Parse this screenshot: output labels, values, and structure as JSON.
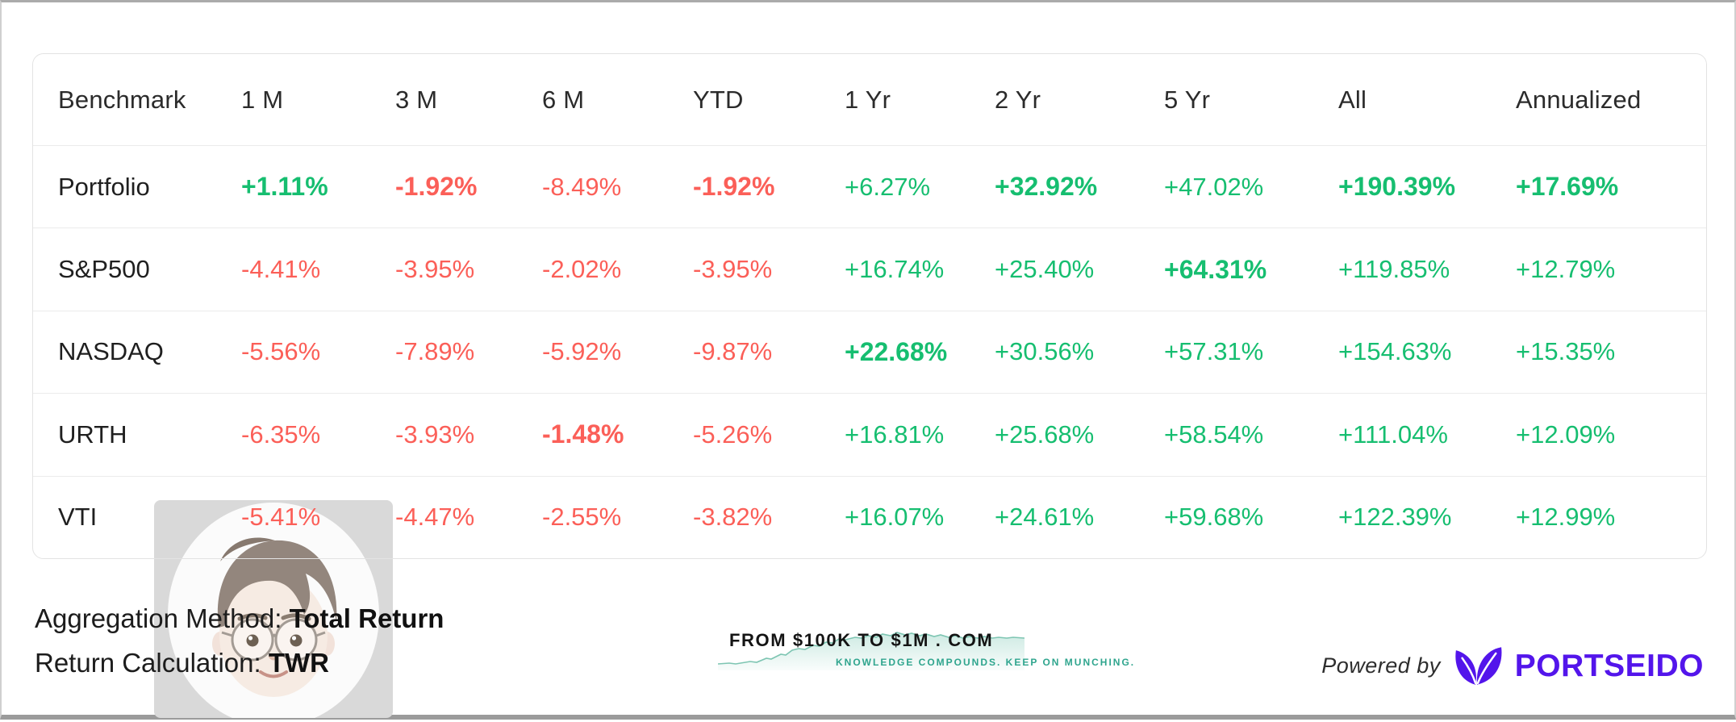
{
  "colors": {
    "positive": "#16be70",
    "negative": "#fb5f58",
    "brand_purple": "#5315eb",
    "watermark_teal": "#2fa58e"
  },
  "table": {
    "columns": [
      "Benchmark",
      "1 M",
      "3 M",
      "6 M",
      "YTD",
      "1 Yr",
      "2 Yr",
      "5 Yr",
      "All",
      "Annualized"
    ],
    "rows": [
      {
        "name": "Portfolio",
        "cells": [
          {
            "text": "+1.11%",
            "best": true
          },
          {
            "text": "-1.92%",
            "best": true
          },
          {
            "text": "-8.49%",
            "best": false
          },
          {
            "text": "-1.92%",
            "best": true
          },
          {
            "text": "+6.27%",
            "best": false
          },
          {
            "text": "+32.92%",
            "best": true
          },
          {
            "text": "+47.02%",
            "best": false
          },
          {
            "text": "+190.39%",
            "best": true
          },
          {
            "text": "+17.69%",
            "best": true
          }
        ]
      },
      {
        "name": "S&P500",
        "cells": [
          {
            "text": "-4.41%",
            "best": false
          },
          {
            "text": "-3.95%",
            "best": false
          },
          {
            "text": "-2.02%",
            "best": false
          },
          {
            "text": "-3.95%",
            "best": false
          },
          {
            "text": "+16.74%",
            "best": false
          },
          {
            "text": "+25.40%",
            "best": false
          },
          {
            "text": "+64.31%",
            "best": true
          },
          {
            "text": "+119.85%",
            "best": false
          },
          {
            "text": "+12.79%",
            "best": false
          }
        ]
      },
      {
        "name": "NASDAQ",
        "cells": [
          {
            "text": "-5.56%",
            "best": false
          },
          {
            "text": "-7.89%",
            "best": false
          },
          {
            "text": "-5.92%",
            "best": false
          },
          {
            "text": "-9.87%",
            "best": false
          },
          {
            "text": "+22.68%",
            "best": true
          },
          {
            "text": "+30.56%",
            "best": false
          },
          {
            "text": "+57.31%",
            "best": false
          },
          {
            "text": "+154.63%",
            "best": false
          },
          {
            "text": "+15.35%",
            "best": false
          }
        ]
      },
      {
        "name": "URTH",
        "cells": [
          {
            "text": "-6.35%",
            "best": false
          },
          {
            "text": "-3.93%",
            "best": false
          },
          {
            "text": "-1.48%",
            "best": true
          },
          {
            "text": "-5.26%",
            "best": false
          },
          {
            "text": "+16.81%",
            "best": false
          },
          {
            "text": "+25.68%",
            "best": false
          },
          {
            "text": "+58.54%",
            "best": false
          },
          {
            "text": "+111.04%",
            "best": false
          },
          {
            "text": "+12.09%",
            "best": false
          }
        ]
      },
      {
        "name": "VTI",
        "cells": [
          {
            "text": "-5.41%",
            "best": false
          },
          {
            "text": "-4.47%",
            "best": false
          },
          {
            "text": "-2.55%",
            "best": false
          },
          {
            "text": "-3.82%",
            "best": false
          },
          {
            "text": "+16.07%",
            "best": false
          },
          {
            "text": "+24.61%",
            "best": false
          },
          {
            "text": "+59.68%",
            "best": false
          },
          {
            "text": "+122.39%",
            "best": false
          },
          {
            "text": "+12.99%",
            "best": false
          }
        ]
      }
    ]
  },
  "footer": {
    "aggregation_label": "Aggregation Method:",
    "aggregation_value": "Total Return",
    "calculation_label": "Return Calculation:",
    "calculation_value": "TWR",
    "watermark_title": "FROM $100K TO $1M . COM",
    "watermark_subtitle": "KNOWLEDGE COMPOUNDS. KEEP ON MUNCHING.",
    "powered_by": "Powered by",
    "brand": "PORTSEIDO"
  },
  "icons": {
    "avatar_watermark": "memoji-man-with-glasses",
    "brand_logo": "portseido-double-leaf",
    "watermark_graphic": "rising-sparkline-area"
  }
}
